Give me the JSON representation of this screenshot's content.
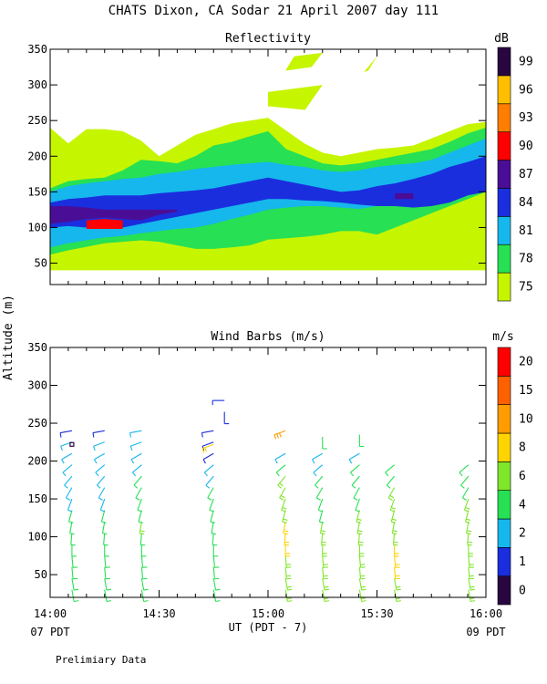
{
  "title": "CHATS Dixon, CA  Sodar  21 April 2007  day 111",
  "ylabel": "Altitude (m)",
  "xlabel": "UT  (PDT - 7)",
  "time_left_note": "07 PDT",
  "time_right_note": "09 PDT",
  "footnote": "Prelimiary Data",
  "chart_data": [
    {
      "type": "heatmap",
      "title": "Reflectivity",
      "xlim": [
        14.0,
        16.0
      ],
      "ylim": [
        20,
        350
      ],
      "x_ticks": [
        "14:00",
        "14:30",
        "15:00",
        "15:30",
        "16:00"
      ],
      "y_ticks": [
        50,
        100,
        150,
        200,
        250,
        300,
        350
      ],
      "colorbar": {
        "unit": "dB",
        "levels": [
          75,
          78,
          81,
          84,
          87,
          90,
          93,
          96,
          99
        ],
        "colors": [
          "#c6f500",
          "#27e053",
          "#16b7ec",
          "#1a2ede",
          "#4a0d96",
          "#ff0000",
          "#ff7d00",
          "#ffbf00",
          "#2a0640"
        ]
      },
      "levels_dB": [
        75,
        78,
        81,
        84,
        87,
        90
      ],
      "times": [
        14.0,
        14.083,
        14.167,
        14.25,
        14.333,
        14.417,
        14.5,
        14.583,
        14.667,
        14.75,
        14.833,
        14.917,
        15.0,
        15.083,
        15.167,
        15.25,
        15.333,
        15.417,
        15.5,
        15.583,
        15.667,
        15.75,
        15.833,
        15.917,
        16.0
      ],
      "contour_bounds_m": {
        "75": {
          "bottom": [
            40,
            40,
            40,
            40,
            40,
            40,
            40,
            40,
            40,
            40,
            40,
            40,
            40,
            40,
            40,
            40,
            40,
            40,
            40,
            40,
            40,
            40,
            40,
            40,
            40
          ],
          "top": [
            240,
            218,
            238,
            238,
            235,
            222,
            200,
            215,
            230,
            238,
            246,
            250,
            254,
            236,
            218,
            205,
            200,
            205,
            210,
            212,
            215,
            225,
            235,
            245,
            248
          ]
        },
        "78": {
          "bottom": [
            62,
            68,
            73,
            78,
            80,
            82,
            80,
            75,
            70,
            70,
            72,
            75,
            83,
            85,
            87,
            90,
            95,
            95,
            90,
            100,
            110,
            120,
            130,
            140,
            150
          ],
          "top": [
            155,
            165,
            168,
            170,
            180,
            195,
            193,
            190,
            200,
            215,
            220,
            228,
            235,
            210,
            200,
            190,
            187,
            190,
            195,
            200,
            205,
            210,
            220,
            232,
            240
          ]
        },
        "81": {
          "bottom": [
            72,
            78,
            82,
            86,
            88,
            92,
            95,
            98,
            100,
            105,
            112,
            118,
            125,
            128,
            130,
            130,
            128,
            126,
            130,
            135,
            140,
            150,
            155,
            160,
            165
          ],
          "top": [
            150,
            158,
            162,
            165,
            168,
            170,
            175,
            178,
            182,
            185,
            188,
            190,
            192,
            188,
            185,
            180,
            178,
            180,
            185,
            188,
            190,
            195,
            205,
            215,
            225
          ]
        },
        "84": {
          "bottom": [
            100,
            102,
            100,
            98,
            100,
            105,
            110,
            115,
            120,
            125,
            130,
            135,
            140,
            140,
            138,
            137,
            135,
            132,
            130,
            130,
            128,
            130,
            135,
            145,
            150
          ],
          "top": [
            135,
            140,
            142,
            145,
            145,
            145,
            148,
            150,
            152,
            155,
            160,
            165,
            170,
            165,
            160,
            155,
            150,
            152,
            158,
            162,
            168,
            175,
            185,
            192,
            200
          ]
        },
        "87": {
          "bottom": [
            105,
            108,
            112,
            114,
            112,
            110,
            118,
            122,
            125,
            128,
            128,
            128,
            128,
            128,
            128,
            128,
            128,
            128,
            128,
            140,
            140,
            128,
            128,
            128,
            128
          ],
          "top": [
            130,
            130,
            128,
            125,
            125,
            125,
            125,
            125,
            125,
            130,
            128,
            128,
            128,
            128,
            128,
            128,
            128,
            128,
            128,
            148,
            148,
            128,
            128,
            128,
            128
          ]
        },
        "90": {
          "bottom": [
            0,
            0,
            98,
            98,
            98,
            0,
            0,
            0,
            0,
            0,
            0,
            0,
            0,
            0,
            0,
            0,
            0,
            0,
            0,
            0,
            0,
            0,
            0,
            0,
            0
          ],
          "top": [
            0,
            0,
            110,
            112,
            110,
            0,
            0,
            0,
            0,
            0,
            0,
            0,
            0,
            0,
            0,
            0,
            0,
            0,
            0,
            0,
            0,
            0,
            0,
            0,
            0
          ]
        }
      },
      "patches_75dB": [
        {
          "times": [
            15.12,
            15.25,
            15.2,
            15.08
          ],
          "alt_m": [
            340,
            345,
            325,
            320
          ]
        },
        {
          "times": [
            15.46,
            15.5,
            15.44
          ],
          "alt_m": [
            320,
            340,
            318
          ]
        },
        {
          "times": [
            15.0,
            15.25,
            15.17,
            15.0
          ],
          "alt_m": [
            290,
            300,
            265,
            270
          ]
        }
      ]
    },
    {
      "type": "scatter",
      "title": "Wind Barbs (m/s)",
      "xlim": [
        14.0,
        16.0
      ],
      "ylim": [
        20,
        350
      ],
      "x_ticks": [
        "14:00",
        "14:30",
        "15:00",
        "15:30",
        "16:00"
      ],
      "y_ticks": [
        50,
        100,
        150,
        200,
        250,
        300,
        350
      ],
      "colorbar": {
        "unit": "m/s",
        "levels": [
          0,
          1,
          2,
          4,
          6,
          8,
          10,
          15,
          20
        ],
        "colors": [
          "#2a0640",
          "#1a2ede",
          "#16b7ec",
          "#27e053",
          "#7fe62a",
          "#ffd400",
          "#ff9d00",
          "#ff6000",
          "#ff0000"
        ]
      },
      "profiles": [
        {
          "time": 14.1,
          "speeds": [
            4,
            4,
            4,
            4,
            5,
            5,
            5,
            4,
            3,
            3,
            3,
            3,
            2,
            2,
            1
          ],
          "dirs_deg": [
            170,
            170,
            175,
            175,
            180,
            185,
            190,
            195,
            200,
            210,
            220,
            230,
            240,
            250,
            260
          ]
        },
        {
          "time": 14.25,
          "speeds": [
            5,
            5,
            5,
            5,
            5,
            5,
            5,
            4,
            3,
            3,
            3,
            2,
            2,
            2,
            1
          ],
          "dirs_deg": [
            170,
            170,
            175,
            175,
            180,
            185,
            190,
            195,
            200,
            210,
            220,
            230,
            240,
            250,
            260
          ]
        },
        {
          "time": 14.42,
          "speeds": [
            5,
            5,
            5,
            5,
            5,
            5,
            6,
            5,
            4,
            4,
            4,
            3,
            3,
            3,
            2
          ],
          "dirs_deg": [
            170,
            170,
            175,
            175,
            180,
            185,
            190,
            195,
            200,
            210,
            220,
            230,
            240,
            250,
            260
          ]
        },
        {
          "time": 14.75,
          "speeds": [
            5,
            5,
            5,
            5,
            5,
            5,
            5,
            5,
            5,
            4,
            3,
            2,
            1,
            1,
            1
          ],
          "dirs_deg": [
            170,
            170,
            175,
            175,
            180,
            185,
            190,
            195,
            200,
            210,
            220,
            230,
            240,
            250,
            260
          ]
        },
        {
          "time": 15.08,
          "speeds": [
            6,
            6,
            6,
            7,
            8,
            8,
            8,
            7,
            6,
            6,
            6,
            5,
            3
          ],
          "dirs_deg": [
            170,
            170,
            175,
            175,
            180,
            185,
            190,
            195,
            200,
            210,
            220,
            230,
            240
          ]
        },
        {
          "time": 15.25,
          "speeds": [
            6,
            6,
            6,
            6,
            6,
            6,
            6,
            5,
            5,
            5,
            4,
            3,
            2
          ],
          "dirs_deg": [
            170,
            170,
            175,
            175,
            180,
            185,
            190,
            195,
            200,
            210,
            220,
            230,
            240
          ]
        },
        {
          "time": 15.42,
          "speeds": [
            6,
            6,
            6,
            6,
            6,
            6,
            6,
            6,
            5,
            5,
            5,
            4,
            3
          ],
          "dirs_deg": [
            170,
            170,
            175,
            175,
            180,
            185,
            190,
            195,
            200,
            210,
            220,
            230,
            240
          ]
        },
        {
          "time": 15.58,
          "speeds": [
            7,
            7,
            8,
            8,
            8,
            7,
            7,
            6,
            6,
            6,
            5,
            4
          ],
          "dirs_deg": [
            170,
            170,
            175,
            175,
            180,
            185,
            190,
            195,
            200,
            210,
            220,
            230
          ]
        },
        {
          "time": 15.92,
          "speeds": [
            6,
            6,
            6,
            6,
            6,
            6,
            6,
            6,
            6,
            5,
            5,
            5
          ],
          "dirs_deg": [
            170,
            170,
            175,
            175,
            180,
            185,
            190,
            195,
            200,
            210,
            220,
            230
          ]
        }
      ],
      "profile_altitudes_m": [
        30,
        45,
        60,
        75,
        90,
        105,
        120,
        135,
        150,
        165,
        180,
        195,
        210,
        225,
        240
      ],
      "upper_barbs": [
        {
          "time": 14.1,
          "alt_m": 222,
          "speed": 0,
          "dir_deg": 0
        },
        {
          "time": 14.75,
          "alt_m": 222,
          "speed": 8,
          "dir_deg": 250
        },
        {
          "time": 14.8,
          "alt_m": 280,
          "speed": 1,
          "dir_deg": 270
        },
        {
          "time": 14.8,
          "alt_m": 265,
          "speed": 1,
          "dir_deg": 180
        },
        {
          "time": 15.08,
          "alt_m": 240,
          "speed": 10,
          "dir_deg": 250
        },
        {
          "time": 15.25,
          "alt_m": 232,
          "speed": 4,
          "dir_deg": 180
        },
        {
          "time": 15.42,
          "alt_m": 235,
          "speed": 4,
          "dir_deg": 180
        }
      ]
    }
  ]
}
